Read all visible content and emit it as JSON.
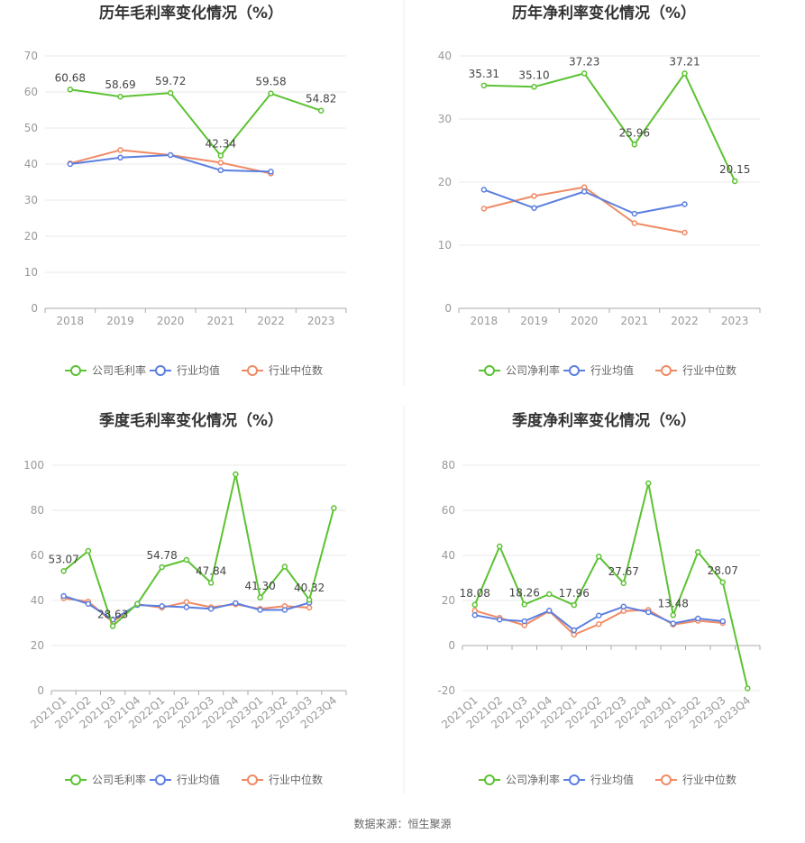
{
  "colors": {
    "company": "#5cc232",
    "avg": "#5b7fe0",
    "median": "#f08a64",
    "grid": "#e8e8e8",
    "axis": "#aaaaaa"
  },
  "legend_annual_gross": [
    "公司毛利率",
    "行业均值",
    "行业中位数"
  ],
  "legend_annual_net": [
    "公司净利率",
    "行业均值",
    "行业中位数"
  ],
  "legend_quarter_gross": [
    "公司毛利率",
    "行业均值",
    "行业中位数"
  ],
  "legend_quarter_net": [
    "公司净利率",
    "行业均值",
    "行业中位数"
  ],
  "source": "数据来源：恒生聚源",
  "chart_data": [
    {
      "type": "line",
      "title": "历年毛利率变化情况（%）",
      "categories": [
        "2018",
        "2019",
        "2020",
        "2021",
        "2022",
        "2023"
      ],
      "ylim": [
        0,
        70
      ],
      "yticks": [
        0,
        10,
        20,
        30,
        40,
        50,
        60,
        70
      ],
      "grid": true,
      "legend": "bottom",
      "series": [
        {
          "name": "公司毛利率",
          "values": [
            60.68,
            58.69,
            59.72,
            42.34,
            59.58,
            54.82
          ],
          "labels": [
            "60.68",
            "58.69",
            "59.72",
            "42.34",
            "59.58",
            "54.82"
          ]
        },
        {
          "name": "行业均值",
          "values": [
            40.0,
            41.8,
            42.5,
            38.3,
            37.9,
            null
          ]
        },
        {
          "name": "行业中位数",
          "values": [
            40.2,
            43.9,
            42.5,
            40.4,
            37.4,
            null
          ]
        }
      ]
    },
    {
      "type": "line",
      "title": "历年净利率变化情况（%）",
      "categories": [
        "2018",
        "2019",
        "2020",
        "2021",
        "2022",
        "2023"
      ],
      "ylim": [
        0,
        40
      ],
      "yticks": [
        0,
        10,
        20,
        30,
        40
      ],
      "grid": true,
      "legend": "bottom",
      "series": [
        {
          "name": "公司净利率",
          "values": [
            35.31,
            35.1,
            37.23,
            25.96,
            37.21,
            20.15
          ],
          "labels": [
            "35.31",
            "35.10",
            "37.23",
            "25.96",
            "37.21",
            "20.15"
          ]
        },
        {
          "name": "行业均值",
          "values": [
            18.8,
            15.9,
            18.5,
            15.0,
            16.5,
            null
          ]
        },
        {
          "name": "行业中位数",
          "values": [
            15.8,
            17.8,
            19.2,
            13.5,
            12.0,
            null
          ]
        }
      ]
    },
    {
      "type": "line",
      "title": "季度毛利率变化情况（%）",
      "categories": [
        "2021Q1",
        "2021Q2",
        "2021Q3",
        "2021Q4",
        "2022Q1",
        "2022Q2",
        "2022Q3",
        "2022Q4",
        "2023Q1",
        "2023Q2",
        "2023Q3",
        "2023Q4"
      ],
      "ylim": [
        0,
        100
      ],
      "yticks": [
        0,
        20,
        40,
        60,
        80,
        100
      ],
      "grid": true,
      "legend": "bottom",
      "series": [
        {
          "name": "公司毛利率",
          "values": [
            53.07,
            62.0,
            28.63,
            38.5,
            54.78,
            58.0,
            47.84,
            96.0,
            41.3,
            55.0,
            40.32,
            81.0
          ],
          "labels": [
            "53.07",
            "",
            "28.63",
            "",
            "54.78",
            "",
            "47.84",
            "",
            "41.30",
            "",
            "40.32",
            ""
          ]
        },
        {
          "name": "行业均值",
          "values": [
            42.0,
            38.5,
            31.5,
            38.0,
            37.5,
            37.0,
            36.3,
            38.8,
            35.8,
            35.8,
            39.0,
            null
          ]
        },
        {
          "name": "行业中位数",
          "values": [
            41.0,
            39.5,
            30.5,
            38.3,
            36.8,
            39.3,
            37.0,
            38.3,
            36.3,
            37.5,
            36.8,
            null
          ]
        }
      ]
    },
    {
      "type": "line",
      "title": "季度净利率变化情况（%）",
      "categories": [
        "2021Q1",
        "2021Q2",
        "2021Q3",
        "2021Q4",
        "2022Q1",
        "2022Q2",
        "2022Q3",
        "2022Q4",
        "2023Q1",
        "2023Q2",
        "2023Q3",
        "2023Q4"
      ],
      "ylim": [
        -20,
        80
      ],
      "yticks": [
        -20,
        0,
        20,
        40,
        60,
        80
      ],
      "grid": true,
      "legend": "bottom",
      "series": [
        {
          "name": "公司净利率",
          "values": [
            18.08,
            44.0,
            18.26,
            22.8,
            17.96,
            39.5,
            27.67,
            72.0,
            13.48,
            41.5,
            28.07,
            -19.0
          ],
          "labels": [
            "18.08",
            "",
            "18.26",
            "",
            "17.96",
            "",
            "27.67",
            "",
            "13.48",
            "",
            "28.07",
            ""
          ]
        },
        {
          "name": "行业均值",
          "values": [
            13.5,
            11.5,
            10.8,
            15.5,
            6.8,
            13.3,
            17.3,
            14.8,
            9.8,
            12.0,
            10.8,
            null
          ]
        },
        {
          "name": "行业中位数",
          "values": [
            15.5,
            12.3,
            9.0,
            15.3,
            4.8,
            9.5,
            15.3,
            15.8,
            9.3,
            11.0,
            10.0,
            null
          ]
        }
      ]
    }
  ]
}
